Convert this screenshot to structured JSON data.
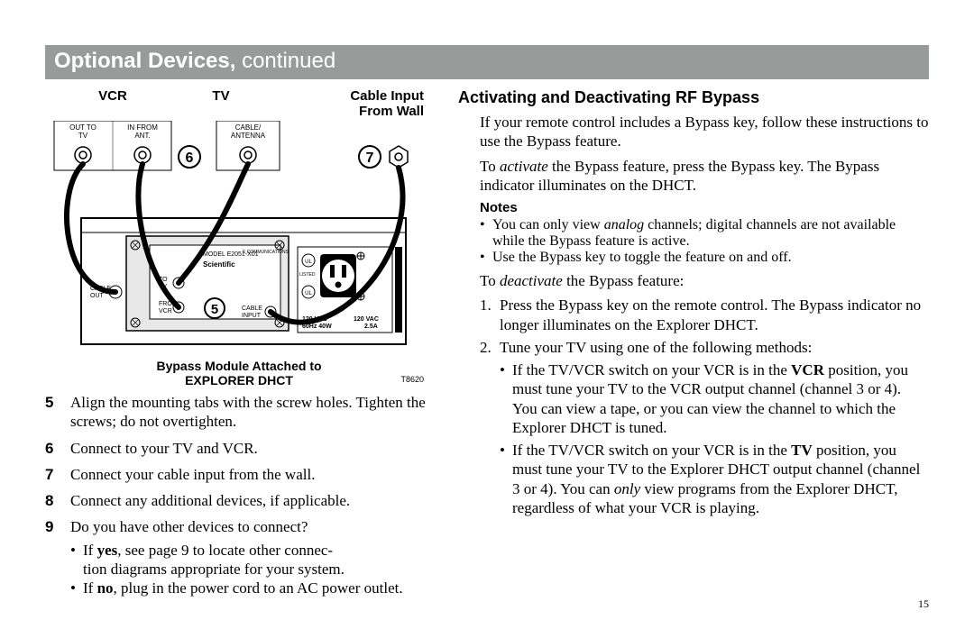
{
  "banner": {
    "bold": "Optional Devices,",
    "rest": " continued"
  },
  "diagram": {
    "labels_top": {
      "vcr": "VCR",
      "tv": "TV",
      "cable": "Cable Input",
      "cable2": "From Wall"
    },
    "port_labels": {
      "vcr_out": "OUT TO",
      "vcr_out2": "TV",
      "vcr_in": "IN FROM",
      "vcr_in2": "ANT.",
      "tv_cable": "CABLE/",
      "tv_cable2": "ANTENNA"
    },
    "device_small": {
      "cable_out": "CABLE",
      "cable_out2": "OUT",
      "to_tv": "TO",
      "to_tv2": "TV",
      "from_vcr": "FROM",
      "from_vcr2": "VCR",
      "cable_in": "CABLE",
      "cable_in2": "INPUT",
      "model": "MODEL E2051-X01",
      "brand": "Scientific",
      "vac": "120 VAC",
      "vac2": "60Hz 40W",
      "vac3": "120 VAC",
      "vac4": "2.5A",
      "listed": "LISTED",
      "caution": "CAUTION",
      "comms": "E COMMUNICATIONS"
    },
    "circled": {
      "c5": "5",
      "c6": "6",
      "c7": "7"
    },
    "caption1": "Bypass Module Attached to",
    "caption2": "EXPLORER DHCT",
    "code": "T8620"
  },
  "steps": [
    {
      "n": "5",
      "t": "Align the mounting tabs with the screw holes. Tighten the screws; do not overtighten."
    },
    {
      "n": "6",
      "t": "Connect to your TV and VCR."
    },
    {
      "n": "7",
      "t": "Connect your cable input from the wall."
    },
    {
      "n": "8",
      "t": "Connect any additional devices, if applicable."
    },
    {
      "n": "9",
      "t": "Do you have other devices to connect?",
      "subs": [
        "If <b>yes</b>, see page 9 to locate other connec-<br>tion diagrams appropriate for your system.",
        "If <b>no</b>, plug in the power cord to an AC power outlet."
      ]
    }
  ],
  "right": {
    "heading": "Activating and Deactivating RF Bypass",
    "p1": "If your remote control includes a Bypass key, follow these instructions to use the Bypass feature.",
    "p2": "To <i>activate</i> the Bypass feature, press the Bypass key. The Bypass indicator illuminates on the DHCT.",
    "notes_label": "Notes",
    "notes": [
      "You can only view <i>analog</i> channels; digital channels are not available while the Bypass feature is active.",
      "Use the Bypass key to toggle the feature on and off."
    ],
    "p3": "To <i>deactivate</i> the Bypass feature:",
    "numlist": [
      {
        "n": "1.",
        "t": "Press the Bypass key on the remote control. The Bypass indicator no longer illuminates on the Explorer DHCT."
      },
      {
        "n": "2.",
        "t": "Tune your TV using one of the following methods:",
        "inner": [
          "If the TV/VCR switch on your VCR is in the <b>VCR</b> position, you must tune your TV to the VCR output channel (channel 3 or 4). You can view a tape, or you can view the channel to which the Explorer DHCT is tuned.",
          "If the TV/VCR switch on your VCR is in the <b>TV</b> position, you must tune your TV to the Explorer DHCT output channel (channel 3 or 4). You can <i>only</i> view programs from the Explorer DHCT, regardless of what your VCR is playing."
        ]
      }
    ]
  },
  "pagenum": "15",
  "colors": {
    "banner_bg": "#999b9a",
    "banner_fg": "#ffffff"
  }
}
